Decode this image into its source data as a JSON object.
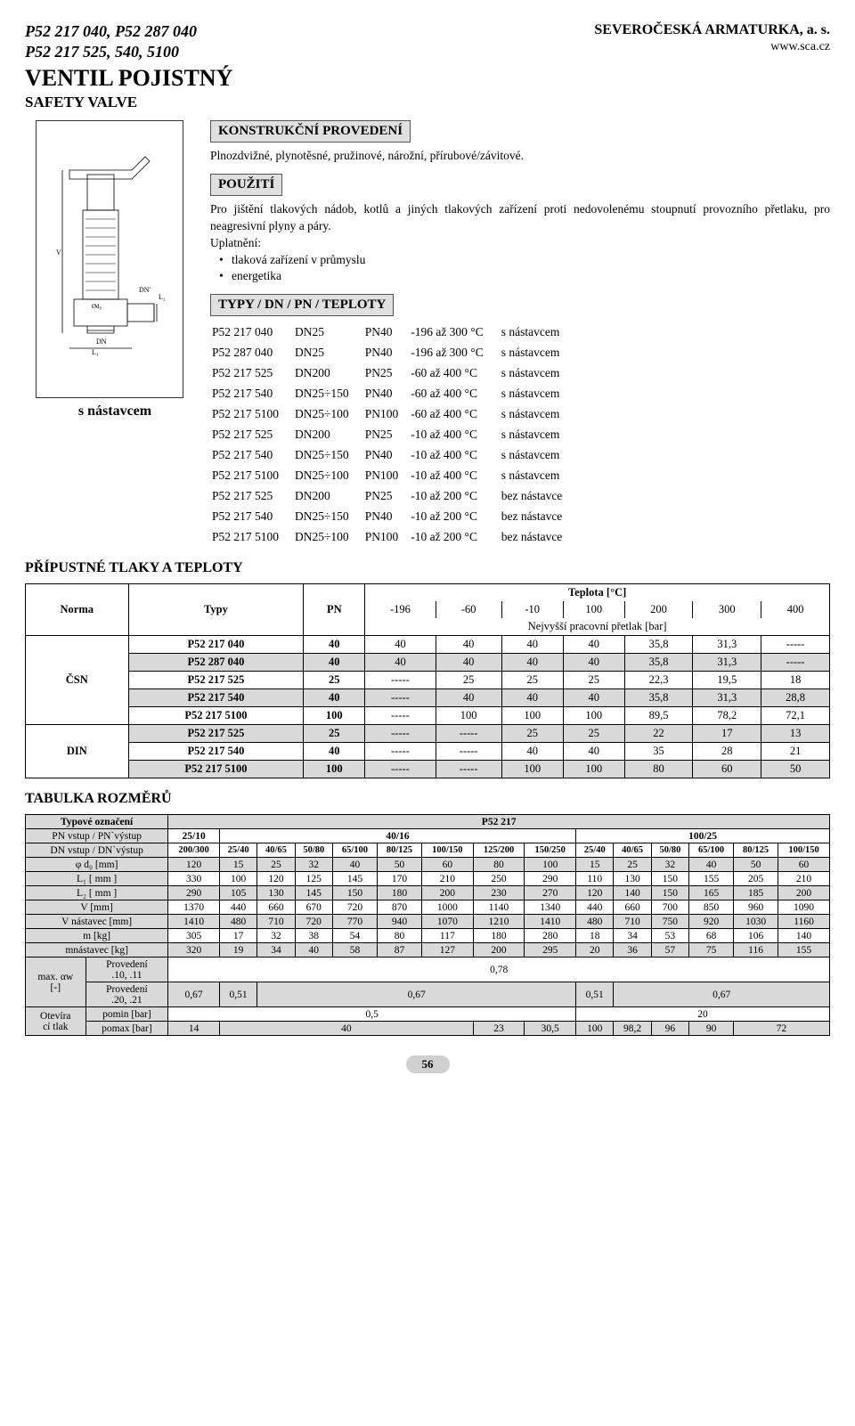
{
  "header": {
    "codes": [
      "P52 217 040, P52 287 040",
      "P52 217 525, 540, 5100"
    ],
    "company": "SEVEROČESKÁ ARMATURKA, a. s.",
    "url": "www.sca.cz"
  },
  "title": {
    "main": "VENTIL POJISTNÝ",
    "sub": "SAFETY VALVE"
  },
  "sections": {
    "construction": {
      "label": "KONSTRUKČNÍ PROVEDENÍ",
      "text": "Plnozdvižné, plynotěsné, pružinové, nárožní, přírubové/závitové."
    },
    "use": {
      "label": "POUŽITÍ",
      "text": "Pro jištění tlakových nádob, kotlů a jiných tlakových zařízení proti nedovolenému stoupnutí provozního přetlaku, pro neagresivní plyny a páry.",
      "uplatneni_label": "Uplatnění:",
      "bullets": [
        "tlaková zařízení v průmyslu",
        "energetika"
      ]
    },
    "types": {
      "label": "TYPY / DN / PN / TEPLOTY",
      "rows": [
        [
          "P52 217 040",
          "DN25",
          "PN40",
          "-196 až 300 °C",
          "s nástavcem"
        ],
        [
          "P52 287 040",
          "DN25",
          "PN40",
          "-196 až 300 °C",
          "s nástavcem"
        ],
        [
          "P52 217 525",
          "DN200",
          "PN25",
          "-60 až 400 °C",
          "s nástavcem"
        ],
        [
          "P52 217 540",
          "DN25÷150",
          "PN40",
          "-60 až 400 °C",
          "s nástavcem"
        ],
        [
          "P52 217 5100",
          "DN25÷100",
          "PN100",
          "-60 až 400 °C",
          "s nástavcem"
        ],
        [
          "P52 217 525",
          "DN200",
          "PN25",
          "-10 až 400 °C",
          "s nástavcem"
        ],
        [
          "P52 217 540",
          "DN25÷150",
          "PN40",
          "-10 až 400 °C",
          "s nástavcem"
        ],
        [
          "P52 217 5100",
          "DN25÷100",
          "PN100",
          "-10 až 400 °C",
          "s nástavcem"
        ],
        [
          "P52 217 525",
          "DN200",
          "PN25",
          "-10 až 200 °C",
          "bez nástavce"
        ],
        [
          "P52 217 540",
          "DN25÷150",
          "PN40",
          "-10 až 200 °C",
          "bez nástavce"
        ],
        [
          "P52 217 5100",
          "DN25÷100",
          "PN100",
          "-10 až 200 °C",
          "bez nástavce"
        ]
      ]
    }
  },
  "diagram_caption": "s nástavcem",
  "limits": {
    "heading": "PŘÍPUSTNÉ TLAKY A TEPLOTY",
    "header": {
      "norma": "Norma",
      "typy": "Typy",
      "pn": "PN",
      "teplota": "Teplota [°C]",
      "temps": [
        "-196",
        "-60",
        "-10",
        "100",
        "200",
        "300",
        "400"
      ],
      "sublabel": "Nejvyšší pracovní přetlak [bar]"
    },
    "groups": [
      {
        "norm": "ČSN",
        "rows": [
          {
            "typ": "P52 217 040",
            "pn": "40",
            "vals": [
              "40",
              "40",
              "40",
              "40",
              "35,8",
              "31,3",
              "-----"
            ],
            "grey": false
          },
          {
            "typ": "P52 287 040",
            "pn": "40",
            "vals": [
              "40",
              "40",
              "40",
              "40",
              "35,8",
              "31,3",
              "-----"
            ],
            "grey": true
          },
          {
            "typ": "P52 217 525",
            "pn": "25",
            "vals": [
              "-----",
              "25",
              "25",
              "25",
              "22,3",
              "19,5",
              "18"
            ],
            "grey": false
          },
          {
            "typ": "P52 217 540",
            "pn": "40",
            "vals": [
              "-----",
              "40",
              "40",
              "40",
              "35,8",
              "31,3",
              "28,8"
            ],
            "grey": true
          },
          {
            "typ": "P52 217 5100",
            "pn": "100",
            "vals": [
              "-----",
              "100",
              "100",
              "100",
              "89,5",
              "78,2",
              "72,1"
            ],
            "grey": false
          }
        ]
      },
      {
        "norm": "DIN",
        "rows": [
          {
            "typ": "P52 217 525",
            "pn": "25",
            "vals": [
              "-----",
              "-----",
              "25",
              "25",
              "22",
              "17",
              "13"
            ],
            "grey": true
          },
          {
            "typ": "P52 217 540",
            "pn": "40",
            "vals": [
              "-----",
              "-----",
              "40",
              "40",
              "35",
              "28",
              "21"
            ],
            "grey": false
          },
          {
            "typ": "P52 217 5100",
            "pn": "100",
            "vals": [
              "-----",
              "-----",
              "100",
              "100",
              "80",
              "60",
              "50"
            ],
            "grey": true
          }
        ]
      }
    ]
  },
  "dims": {
    "heading": "TABULKA ROZMĚRŮ",
    "top_labels": {
      "typ": "Typové označení",
      "pn": "PN vstup / PN`výstup",
      "dn": "DN vstup / DN`výstup",
      "p52": "P52 217"
    },
    "pn_row": [
      "25/10",
      "40/16",
      "100/25"
    ],
    "dn_row": [
      "200/300",
      "25/40",
      "40/65",
      "50/80",
      "65/100",
      "80/125",
      "100/150",
      "125/200",
      "150/250",
      "25/40",
      "40/65",
      "50/80",
      "65/100",
      "80/125",
      "100/150"
    ],
    "rows": [
      {
        "label": "φ d₀ [mm]",
        "vals": [
          "120",
          "15",
          "25",
          "32",
          "40",
          "50",
          "60",
          "80",
          "100",
          "15",
          "25",
          "32",
          "40",
          "50",
          "60"
        ],
        "grey": true
      },
      {
        "label": "L₁ [ mm ]",
        "vals": [
          "330",
          "100",
          "120",
          "125",
          "145",
          "170",
          "210",
          "250",
          "290",
          "110",
          "130",
          "150",
          "155",
          "205",
          "210"
        ],
        "grey": false
      },
      {
        "label": "L₂ [ mm ]",
        "vals": [
          "290",
          "105",
          "130",
          "145",
          "150",
          "180",
          "200",
          "230",
          "270",
          "120",
          "140",
          "150",
          "165",
          "185",
          "200"
        ],
        "grey": true
      },
      {
        "label": "V [mm]",
        "vals": [
          "1370",
          "440",
          "660",
          "670",
          "720",
          "870",
          "1000",
          "1140",
          "1340",
          "440",
          "660",
          "700",
          "850",
          "960",
          "1090"
        ],
        "grey": false
      },
      {
        "label": "V nástavec [mm]",
        "vals": [
          "1410",
          "480",
          "710",
          "720",
          "770",
          "940",
          "1070",
          "1210",
          "1410",
          "480",
          "710",
          "750",
          "920",
          "1030",
          "1160"
        ],
        "grey": true
      },
      {
        "label": "m [kg]",
        "vals": [
          "305",
          "17",
          "32",
          "38",
          "54",
          "80",
          "117",
          "180",
          "280",
          "18",
          "34",
          "53",
          "68",
          "106",
          "140"
        ],
        "grey": false
      },
      {
        "label": "mnástavec [kg]",
        "vals": [
          "320",
          "19",
          "34",
          "40",
          "58",
          "87",
          "127",
          "200",
          "295",
          "20",
          "36",
          "57",
          "75",
          "116",
          "155"
        ],
        "grey": true
      }
    ],
    "alpha": {
      "label": "max. αw\n[-]",
      "rows": [
        {
          "sub": "Provedení\n.10, .11",
          "spans": [
            {
              "text": "0,78",
              "cols": 15
            }
          ],
          "grey": false
        },
        {
          "sub": "Provedení\n.20, .21",
          "spans": [
            {
              "text": "0,67",
              "cols": 1
            },
            {
              "text": "0,51",
              "cols": 1
            },
            {
              "text": "0,67",
              "cols": 7
            },
            {
              "text": "0,51",
              "cols": 1
            },
            {
              "text": "0,67",
              "cols": 5
            }
          ],
          "grey": true
        }
      ]
    },
    "open": {
      "label": "Otevíra\ncí tlak",
      "rows": [
        {
          "sub": "pomin [bar]",
          "spans": [
            {
              "text": "0,5",
              "cols": 9
            },
            {
              "text": "20",
              "cols": 6
            }
          ],
          "grey": false
        },
        {
          "sub": "pomax [bar]",
          "spans": [
            {
              "text": "14",
              "cols": 1
            },
            {
              "text": "40",
              "cols": 6
            },
            {
              "text": "23",
              "cols": 1
            },
            {
              "text": "30,5",
              "cols": 1
            },
            {
              "text": "100",
              "cols": 1
            },
            {
              "text": "98,2",
              "cols": 1
            },
            {
              "text": "96",
              "cols": 1
            },
            {
              "text": "90",
              "cols": 1
            },
            {
              "text": "72",
              "cols": 2
            }
          ],
          "grey": true
        }
      ]
    }
  },
  "pagenum": "56"
}
